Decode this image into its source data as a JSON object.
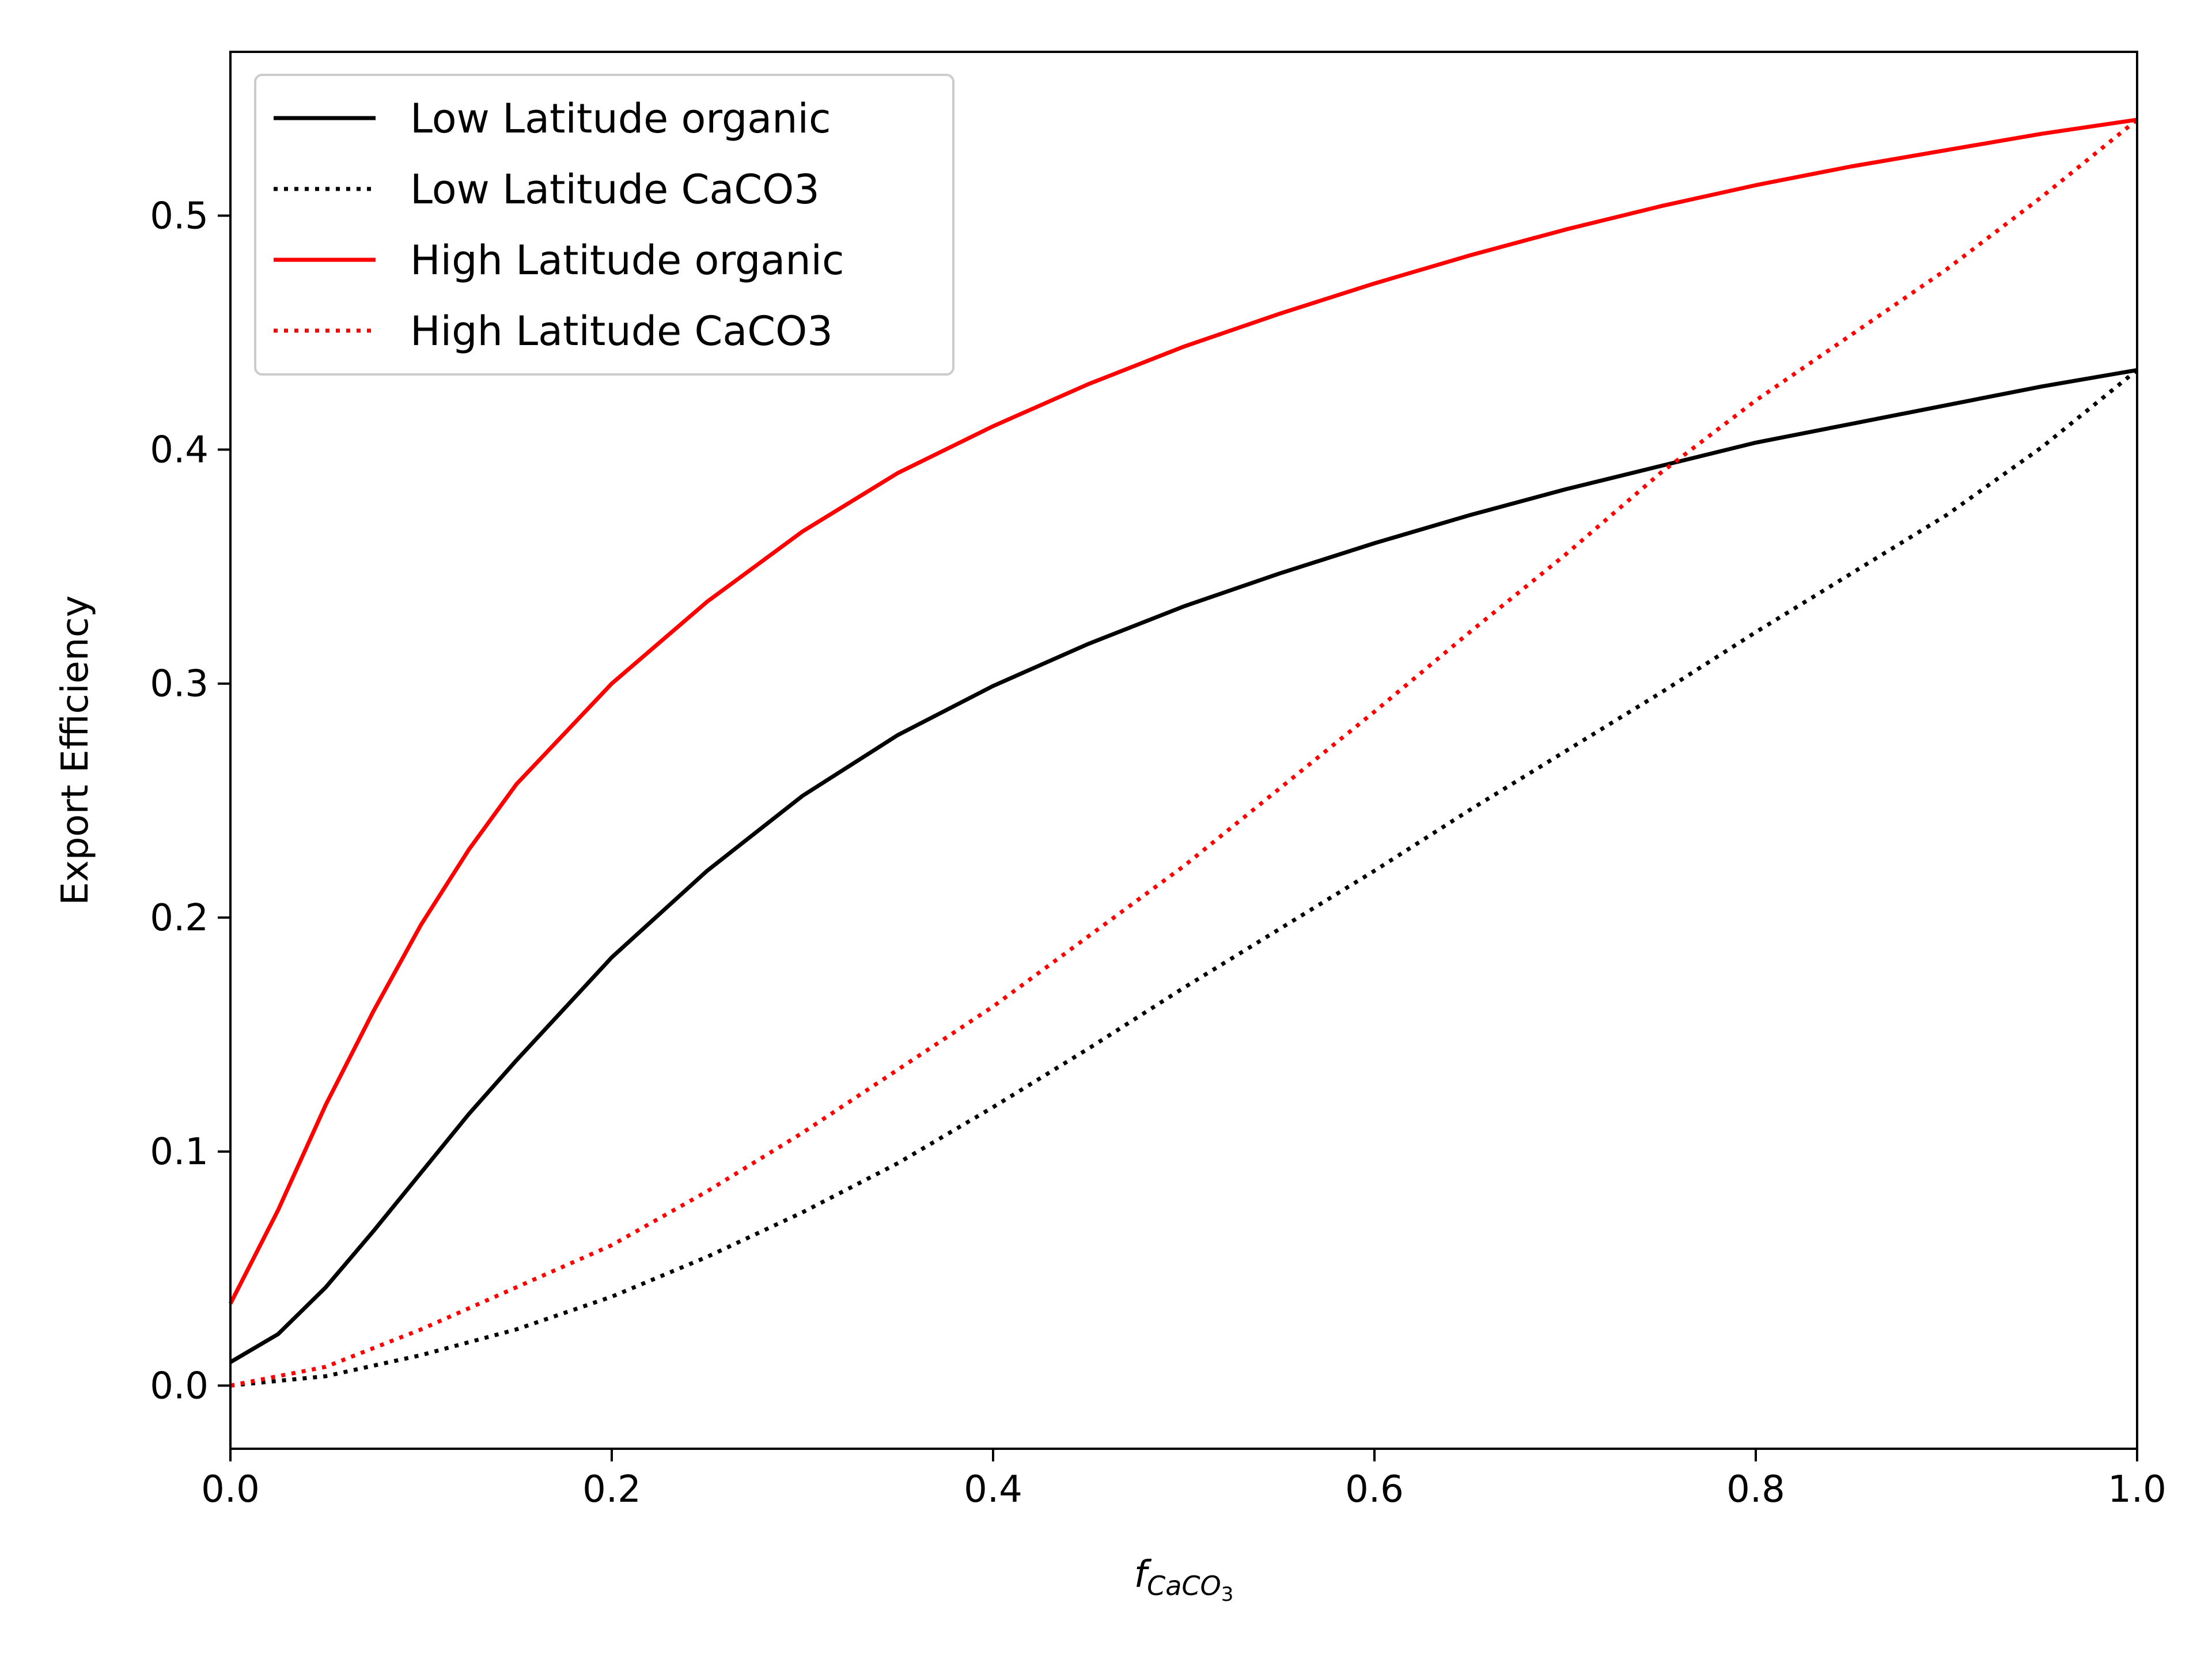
{
  "chart_data": {
    "type": "line",
    "title": "",
    "xlabel": {
      "base": "f",
      "sub": "CaCO",
      "subsub": "3"
    },
    "ylabel": "Export Efficiency",
    "xlim": [
      0.0,
      1.0
    ],
    "ylim": [
      -0.027,
      0.57
    ],
    "xticks": [
      0.0,
      0.2,
      0.4,
      0.6,
      0.8,
      1.0
    ],
    "xtick_labels": [
      "0.0",
      "0.2",
      "0.4",
      "0.6",
      "0.8",
      "1.0"
    ],
    "yticks": [
      0.0,
      0.1,
      0.2,
      0.3,
      0.4,
      0.5
    ],
    "ytick_labels": [
      "0.0",
      "0.1",
      "0.2",
      "0.3",
      "0.4",
      "0.5"
    ],
    "grid": false,
    "legend_position": "top-left",
    "series": [
      {
        "name": "Low Latitude organic",
        "color": "#000000",
        "style": "solid",
        "x": [
          0.0,
          0.025,
          0.05,
          0.075,
          0.1,
          0.125,
          0.15,
          0.2,
          0.25,
          0.3,
          0.35,
          0.4,
          0.45,
          0.5,
          0.55,
          0.6,
          0.65,
          0.7,
          0.75,
          0.8,
          0.85,
          0.9,
          0.95,
          1.0
        ],
        "y": [
          0.01,
          0.022,
          0.042,
          0.066,
          0.091,
          0.116,
          0.139,
          0.183,
          0.22,
          0.252,
          0.278,
          0.299,
          0.317,
          0.333,
          0.347,
          0.36,
          0.372,
          0.383,
          0.393,
          0.403,
          0.411,
          0.419,
          0.427,
          0.434
        ]
      },
      {
        "name": "Low Latitude CaCO3",
        "color": "#000000",
        "style": "dotted",
        "x": [
          0.0,
          0.05,
          0.1,
          0.15,
          0.2,
          0.25,
          0.3,
          0.35,
          0.4,
          0.45,
          0.5,
          0.55,
          0.6,
          0.65,
          0.7,
          0.75,
          0.8,
          0.85,
          0.9,
          0.95,
          1.0
        ],
        "y": [
          0.0,
          0.004,
          0.013,
          0.024,
          0.038,
          0.055,
          0.074,
          0.095,
          0.119,
          0.144,
          0.17,
          0.195,
          0.22,
          0.246,
          0.271,
          0.296,
          0.322,
          0.347,
          0.372,
          0.401,
          0.434
        ]
      },
      {
        "name": "High Latitude organic",
        "color": "#ff0000",
        "style": "solid",
        "x": [
          0.0,
          0.025,
          0.05,
          0.075,
          0.1,
          0.125,
          0.15,
          0.2,
          0.25,
          0.3,
          0.35,
          0.4,
          0.45,
          0.5,
          0.55,
          0.6,
          0.65,
          0.7,
          0.75,
          0.8,
          0.85,
          0.9,
          0.95,
          1.0
        ],
        "y": [
          0.035,
          0.075,
          0.12,
          0.16,
          0.197,
          0.229,
          0.257,
          0.3,
          0.335,
          0.365,
          0.39,
          0.41,
          0.428,
          0.444,
          0.458,
          0.471,
          0.483,
          0.494,
          0.504,
          0.513,
          0.521,
          0.528,
          0.535,
          0.541
        ]
      },
      {
        "name": "High Latitude CaCO3",
        "color": "#ff0000",
        "style": "dotted",
        "x": [
          0.0,
          0.05,
          0.1,
          0.15,
          0.2,
          0.25,
          0.3,
          0.35,
          0.4,
          0.45,
          0.5,
          0.55,
          0.6,
          0.65,
          0.7,
          0.75,
          0.8,
          0.85,
          0.9,
          0.95,
          1.0
        ],
        "y": [
          0.0,
          0.008,
          0.024,
          0.042,
          0.06,
          0.083,
          0.108,
          0.135,
          0.162,
          0.192,
          0.222,
          0.255,
          0.288,
          0.322,
          0.355,
          0.39,
          0.421,
          0.449,
          0.477,
          0.508,
          0.541
        ]
      }
    ]
  }
}
